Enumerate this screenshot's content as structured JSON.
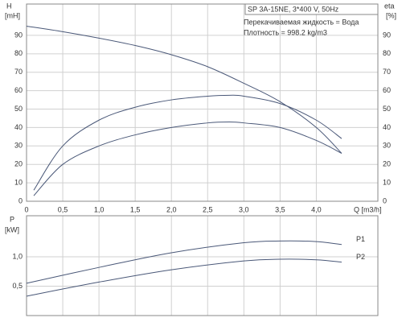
{
  "chart_data": [
    {
      "type": "line",
      "header": "SP 3A-15NE, 3*400 V, 50Hz",
      "annotations": [
        "Перекачиваемая жидкость = Вода",
        "Плотность = 998.2 kg/m3"
      ],
      "ylabel": "H",
      "yunit": "[mH]",
      "y2label": "eta",
      "y2unit": "[%]",
      "xlabel": "Q [m3/h]",
      "xlim": [
        0,
        4.85
      ],
      "ylim": [
        0,
        107
      ],
      "y2lim": [
        0,
        107
      ],
      "xticks": [
        0,
        {
          "value": 0.5,
          "label": "0,5"
        },
        {
          "value": 1.0,
          "label": "1,0"
        },
        {
          "value": 1.5,
          "label": "1,5"
        },
        {
          "value": 2.0,
          "label": "2,0"
        },
        {
          "value": 2.5,
          "label": "2,5"
        },
        {
          "value": 3.0,
          "label": "3,0"
        },
        {
          "value": 3.5,
          "label": "3,5"
        },
        {
          "value": 4.0,
          "label": "4,0"
        }
      ],
      "yticks": [
        0,
        10,
        20,
        30,
        40,
        50,
        60,
        70,
        80,
        90
      ],
      "y2ticks": [
        0,
        10,
        20,
        30,
        40,
        50,
        60,
        70,
        80,
        90
      ],
      "grid": true,
      "series": [
        {
          "color": "#4a5878",
          "x": [
            0,
            0.5,
            1.0,
            1.5,
            2.0,
            2.5,
            3.0,
            3.5,
            4.0,
            4.35
          ],
          "values": [
            95,
            92,
            88.5,
            84.5,
            79.5,
            73,
            64,
            54,
            40,
            26
          ]
        },
        {
          "color": "#4a5878",
          "axis": "y2",
          "x": [
            0.1,
            0.5,
            1.0,
            1.5,
            2.0,
            2.5,
            2.8,
            3.0,
            3.5,
            4.0,
            4.35
          ],
          "values": [
            6,
            30,
            44,
            51,
            55,
            57,
            57.5,
            57,
            53,
            44,
            34
          ]
        },
        {
          "color": "#4a5878",
          "axis": "y2",
          "x": [
            0.1,
            0.5,
            1.0,
            1.5,
            2.0,
            2.5,
            2.8,
            3.0,
            3.5,
            4.0,
            4.35
          ],
          "values": [
            3,
            20,
            30,
            36,
            40,
            42.5,
            43,
            42.5,
            40,
            33,
            26
          ]
        }
      ]
    },
    {
      "type": "line",
      "ylabel": "P",
      "yunit": "[kW]",
      "xlim": [
        0,
        4.85
      ],
      "ylim": [
        0,
        1.7
      ],
      "xticks": [
        0,
        0.5,
        1.0,
        1.5,
        2.0,
        2.5,
        3.0,
        3.5,
        4.0
      ],
      "yticks": [
        {
          "value": 0.5,
          "label": "0,5"
        },
        {
          "value": 1.0,
          "label": "1,0"
        }
      ],
      "grid": true,
      "series": [
        {
          "name": "P1",
          "color": "#4a5878",
          "x": [
            0,
            1.0,
            2.0,
            3.0,
            3.5,
            4.0,
            4.35
          ],
          "values": [
            0.55,
            0.82,
            1.07,
            1.24,
            1.27,
            1.26,
            1.21
          ]
        },
        {
          "name": "P2",
          "color": "#4a5878",
          "x": [
            0,
            1.0,
            2.0,
            3.0,
            3.5,
            4.0,
            4.35
          ],
          "values": [
            0.33,
            0.57,
            0.78,
            0.93,
            0.96,
            0.95,
            0.91
          ]
        }
      ]
    }
  ]
}
